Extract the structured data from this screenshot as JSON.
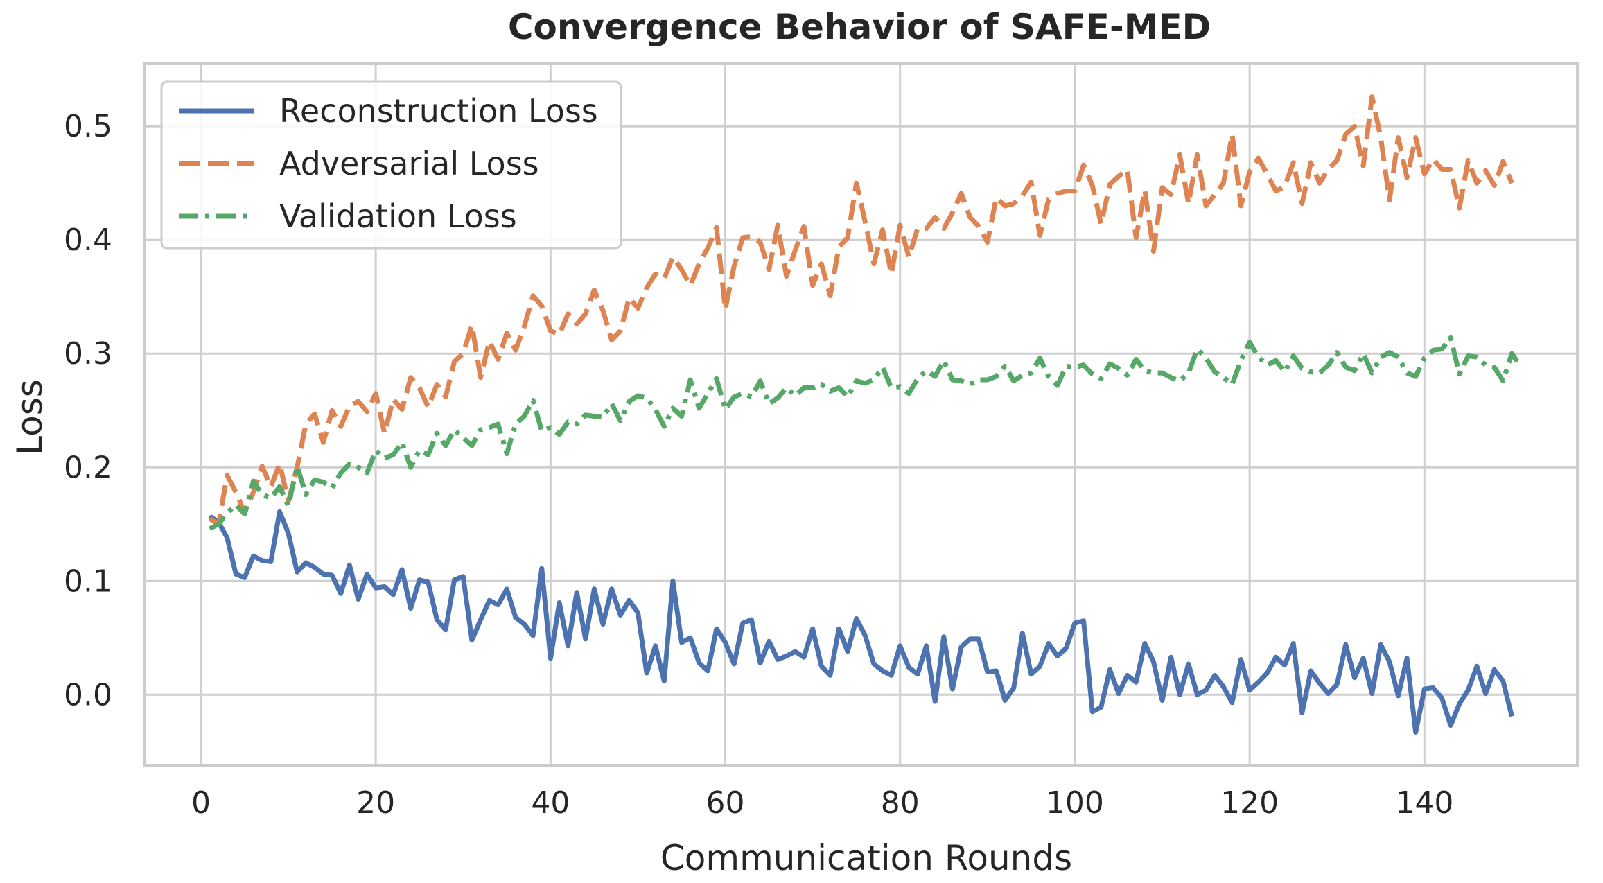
{
  "chart_data": {
    "type": "line",
    "title": "Convergence Behavior of SAFE-MED",
    "xlabel": "Communication Rounds",
    "ylabel": "Loss",
    "xlim": [
      -6.5,
      157.5
    ],
    "ylim": [
      -0.062,
      0.555
    ],
    "xticks": [
      0,
      20,
      40,
      60,
      80,
      100,
      120,
      140
    ],
    "yticks": [
      0.0,
      0.1,
      0.2,
      0.3,
      0.4,
      0.5
    ],
    "xtick_labels": [
      "0",
      "20",
      "40",
      "60",
      "80",
      "100",
      "120",
      "140"
    ],
    "ytick_labels": [
      "0.0",
      "0.1",
      "0.2",
      "0.3",
      "0.4",
      "0.5"
    ],
    "grid": true,
    "legend_position": "top-left",
    "x_start": 1,
    "series": [
      {
        "name": "Reconstruction Loss",
        "color": "#4c72b0",
        "style": "solid",
        "values": [
          0.157,
          0.152,
          0.138,
          0.106,
          0.103,
          0.122,
          0.118,
          0.117,
          0.161,
          0.142,
          0.108,
          0.116,
          0.112,
          0.106,
          0.105,
          0.089,
          0.114,
          0.084,
          0.106,
          0.094,
          0.095,
          0.088,
          0.11,
          0.076,
          0.101,
          0.099,
          0.066,
          0.057,
          0.101,
          0.104,
          0.048,
          0.066,
          0.083,
          0.079,
          0.093,
          0.068,
          0.062,
          0.052,
          0.111,
          0.032,
          0.081,
          0.043,
          0.09,
          0.049,
          0.093,
          0.062,
          0.093,
          0.07,
          0.083,
          0.072,
          0.019,
          0.043,
          0.012,
          0.1,
          0.046,
          0.05,
          0.028,
          0.021,
          0.058,
          0.046,
          0.027,
          0.063,
          0.066,
          0.028,
          0.047,
          0.031,
          0.034,
          0.038,
          0.033,
          0.058,
          0.025,
          0.017,
          0.058,
          0.038,
          0.067,
          0.052,
          0.027,
          0.021,
          0.017,
          0.043,
          0.024,
          0.018,
          0.043,
          -0.006,
          0.051,
          0.005,
          0.042,
          0.049,
          0.049,
          0.02,
          0.021,
          -0.005,
          0.006,
          0.054,
          0.018,
          0.025,
          0.045,
          0.034,
          0.041,
          0.063,
          0.065,
          -0.015,
          -0.011,
          0.022,
          0.001,
          0.017,
          0.011,
          0.045,
          0.029,
          -0.005,
          0.033,
          0.0,
          0.027,
          0.0,
          0.004,
          0.017,
          0.007,
          -0.007,
          0.031,
          0.004,
          0.011,
          0.019,
          0.033,
          0.026,
          0.045,
          -0.016,
          0.021,
          0.01,
          0.001,
          0.009,
          0.044,
          0.015,
          0.032,
          0.001,
          0.044,
          0.029,
          -0.001,
          0.032,
          -0.033,
          0.005,
          0.006,
          -0.003,
          -0.027,
          -0.008,
          0.004,
          0.025,
          0.001,
          0.022,
          0.012,
          -0.019
        ]
      },
      {
        "name": "Adversarial Loss",
        "color": "#dd8452",
        "style": "dashed",
        "values": [
          0.155,
          0.15,
          0.193,
          0.178,
          0.16,
          0.178,
          0.201,
          0.183,
          0.203,
          0.17,
          0.2,
          0.238,
          0.247,
          0.222,
          0.25,
          0.236,
          0.254,
          0.258,
          0.249,
          0.265,
          0.23,
          0.26,
          0.251,
          0.279,
          0.27,
          0.253,
          0.273,
          0.262,
          0.293,
          0.3,
          0.325,
          0.279,
          0.311,
          0.295,
          0.318,
          0.303,
          0.324,
          0.351,
          0.342,
          0.32,
          0.317,
          0.335,
          0.326,
          0.335,
          0.356,
          0.338,
          0.312,
          0.32,
          0.349,
          0.34,
          0.358,
          0.37,
          0.366,
          0.385,
          0.374,
          0.36,
          0.379,
          0.393,
          0.411,
          0.339,
          0.377,
          0.402,
          0.403,
          0.398,
          0.374,
          0.413,
          0.368,
          0.391,
          0.412,
          0.36,
          0.379,
          0.351,
          0.394,
          0.402,
          0.45,
          0.416,
          0.379,
          0.409,
          0.37,
          0.413,
          0.385,
          0.41,
          0.41,
          0.42,
          0.41,
          0.424,
          0.441,
          0.42,
          0.412,
          0.398,
          0.437,
          0.43,
          0.432,
          0.439,
          0.451,
          0.404,
          0.436,
          0.441,
          0.443,
          0.443,
          0.466,
          0.448,
          0.414,
          0.449,
          0.456,
          0.462,
          0.402,
          0.444,
          0.39,
          0.446,
          0.44,
          0.475,
          0.432,
          0.475,
          0.43,
          0.44,
          0.45,
          0.493,
          0.43,
          0.46,
          0.472,
          0.458,
          0.443,
          0.447,
          0.468,
          0.432,
          0.468,
          0.45,
          0.462,
          0.47,
          0.493,
          0.5,
          0.465,
          0.526,
          0.49,
          0.435,
          0.49,
          0.455,
          0.49,
          0.458,
          0.471,
          0.462,
          0.462,
          0.428,
          0.47,
          0.45,
          0.461,
          0.448,
          0.469,
          0.45
        ]
      },
      {
        "name": "Validation Loss",
        "color": "#55a868",
        "style": "dashdot",
        "values": [
          0.146,
          0.15,
          0.16,
          0.167,
          0.159,
          0.188,
          0.176,
          0.173,
          0.183,
          0.166,
          0.201,
          0.176,
          0.189,
          0.187,
          0.182,
          0.195,
          0.203,
          0.2,
          0.195,
          0.215,
          0.208,
          0.211,
          0.222,
          0.2,
          0.215,
          0.211,
          0.23,
          0.219,
          0.233,
          0.226,
          0.219,
          0.233,
          0.235,
          0.238,
          0.212,
          0.238,
          0.245,
          0.259,
          0.232,
          0.235,
          0.229,
          0.24,
          0.238,
          0.246,
          0.245,
          0.244,
          0.256,
          0.241,
          0.258,
          0.263,
          0.261,
          0.251,
          0.236,
          0.252,
          0.245,
          0.277,
          0.252,
          0.265,
          0.278,
          0.251,
          0.262,
          0.265,
          0.262,
          0.276,
          0.256,
          0.261,
          0.27,
          0.263,
          0.27,
          0.27,
          0.273,
          0.267,
          0.27,
          0.262,
          0.276,
          0.274,
          0.277,
          0.288,
          0.27,
          0.271,
          0.265,
          0.278,
          0.285,
          0.28,
          0.294,
          0.277,
          0.276,
          0.273,
          0.277,
          0.277,
          0.28,
          0.289,
          0.276,
          0.281,
          0.283,
          0.296,
          0.28,
          0.272,
          0.289,
          0.288,
          0.29,
          0.282,
          0.278,
          0.291,
          0.287,
          0.281,
          0.295,
          0.285,
          0.283,
          0.283,
          0.279,
          0.276,
          0.283,
          0.304,
          0.296,
          0.284,
          0.279,
          0.273,
          0.294,
          0.31,
          0.297,
          0.29,
          0.294,
          0.284,
          0.298,
          0.287,
          0.284,
          0.283,
          0.29,
          0.301,
          0.288,
          0.285,
          0.3,
          0.283,
          0.297,
          0.301,
          0.297,
          0.283,
          0.28,
          0.296,
          0.303,
          0.304,
          0.314,
          0.282,
          0.298,
          0.297,
          0.29,
          0.288,
          0.276,
          0.3,
          0.289
        ]
      }
    ]
  }
}
